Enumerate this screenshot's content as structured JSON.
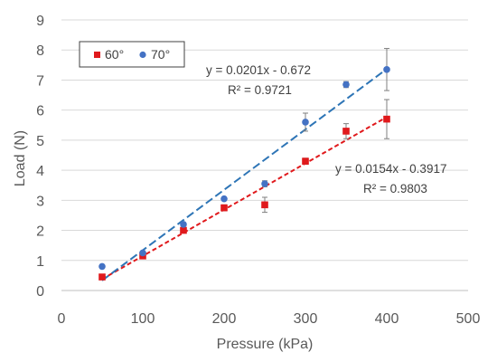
{
  "chart_data": {
    "type": "scatter",
    "xlabel": "Pressure (kPa)",
    "ylabel": "Load (N)",
    "xlim": [
      0,
      500
    ],
    "ylim": [
      0,
      9
    ],
    "xticks": [
      0,
      100,
      200,
      300,
      400,
      500
    ],
    "yticks": [
      0,
      1,
      2,
      3,
      4,
      5,
      6,
      7,
      8,
      9
    ],
    "grid": "horizontal",
    "legend": "top-left",
    "series": [
      {
        "name": "60°",
        "color": "#e0191c",
        "marker": "square",
        "x": [
          50,
          100,
          150,
          200,
          250,
          300,
          350,
          400
        ],
        "y": [
          0.45,
          1.15,
          2.0,
          2.75,
          2.85,
          4.3,
          5.3,
          5.7
        ],
        "err": [
          0.05,
          0.05,
          0.05,
          0.1,
          0.25,
          0.1,
          0.25,
          0.65
        ],
        "trend": {
          "slope": 0.0154,
          "intercept": -0.3917,
          "color": "#e0191c"
        },
        "equation": "y = 0.0154x - 0.3917",
        "r2": "R² = 0.9803"
      },
      {
        "name": "70°",
        "color": "#4472c4",
        "marker": "circle",
        "x": [
          50,
          100,
          150,
          200,
          250,
          300,
          350,
          400
        ],
        "y": [
          0.8,
          1.25,
          2.2,
          3.05,
          3.55,
          5.6,
          6.85,
          7.35
        ],
        "err": [
          0.05,
          0.05,
          0.05,
          0.05,
          0.1,
          0.3,
          0.1,
          0.7
        ],
        "trend": {
          "slope": 0.0201,
          "intercept": -0.672,
          "color": "#2e75b6"
        },
        "equation": "y = 0.0201x - 0.672",
        "r2": "R² = 0.9721"
      }
    ]
  }
}
